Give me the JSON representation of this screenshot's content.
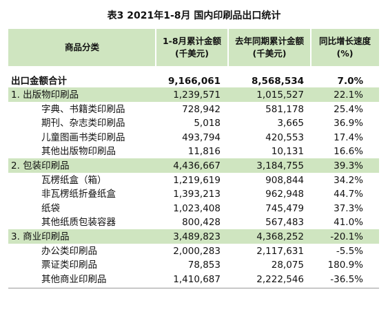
{
  "header": {
    "title": "表3 2021年1-8月 国内印刷品出口统计"
  },
  "table": {
    "columns": [
      [
        "商品分类"
      ],
      [
        "1-8月累计金额",
        "(千美元)"
      ],
      [
        "去年同期累计金额",
        "(千美元)"
      ],
      [
        "同比增长速度",
        "(%)"
      ]
    ],
    "total": [
      "出口金额合计",
      "9,166,061",
      "8,568,534",
      "7.0%"
    ],
    "sections": [
      {
        "row": [
          "1. 出版物印刷品",
          "1,239,571",
          "1,015,527",
          "22.1%"
        ],
        "items": [
          [
            "字典、书籍类印刷品",
            "728,942",
            "581,178",
            "25.4%"
          ],
          [
            "期刊、杂志类印刷品",
            "5,018",
            "3,665",
            "36.9%"
          ],
          [
            "儿童图画书类印刷品",
            "493,794",
            "420,553",
            "17.4%"
          ],
          [
            "其他出版物印刷品",
            "11,816",
            "10,131",
            "16.6%"
          ]
        ]
      },
      {
        "row": [
          "2. 包装印刷品",
          "4,436,667",
          "3,184,755",
          "39.3%"
        ],
        "items": [
          [
            "瓦楞纸盒（箱）",
            "1,219,619",
            "908,844",
            "34.2%"
          ],
          [
            "非瓦楞纸折叠纸盒",
            "1,393,213",
            "962,948",
            "44.7%"
          ],
          [
            "纸袋",
            "1,023,408",
            "745,479",
            "37.3%"
          ],
          [
            "其他纸质包装容器",
            "800,428",
            "567,483",
            "41.0%"
          ]
        ]
      },
      {
        "row": [
          "3. 商业印刷品",
          "3,489,823",
          "4,368,252",
          "-20.1%"
        ],
        "items": [
          [
            "办公类印刷品",
            "2,000,283",
            "2,117,631",
            "-5.5%"
          ],
          [
            "票证类印刷品",
            "78,853",
            "28,075",
            "180.9%"
          ],
          [
            "其他商业印刷品",
            "1,410,687",
            "2,222,546",
            "-36.5%"
          ]
        ]
      }
    ]
  }
}
